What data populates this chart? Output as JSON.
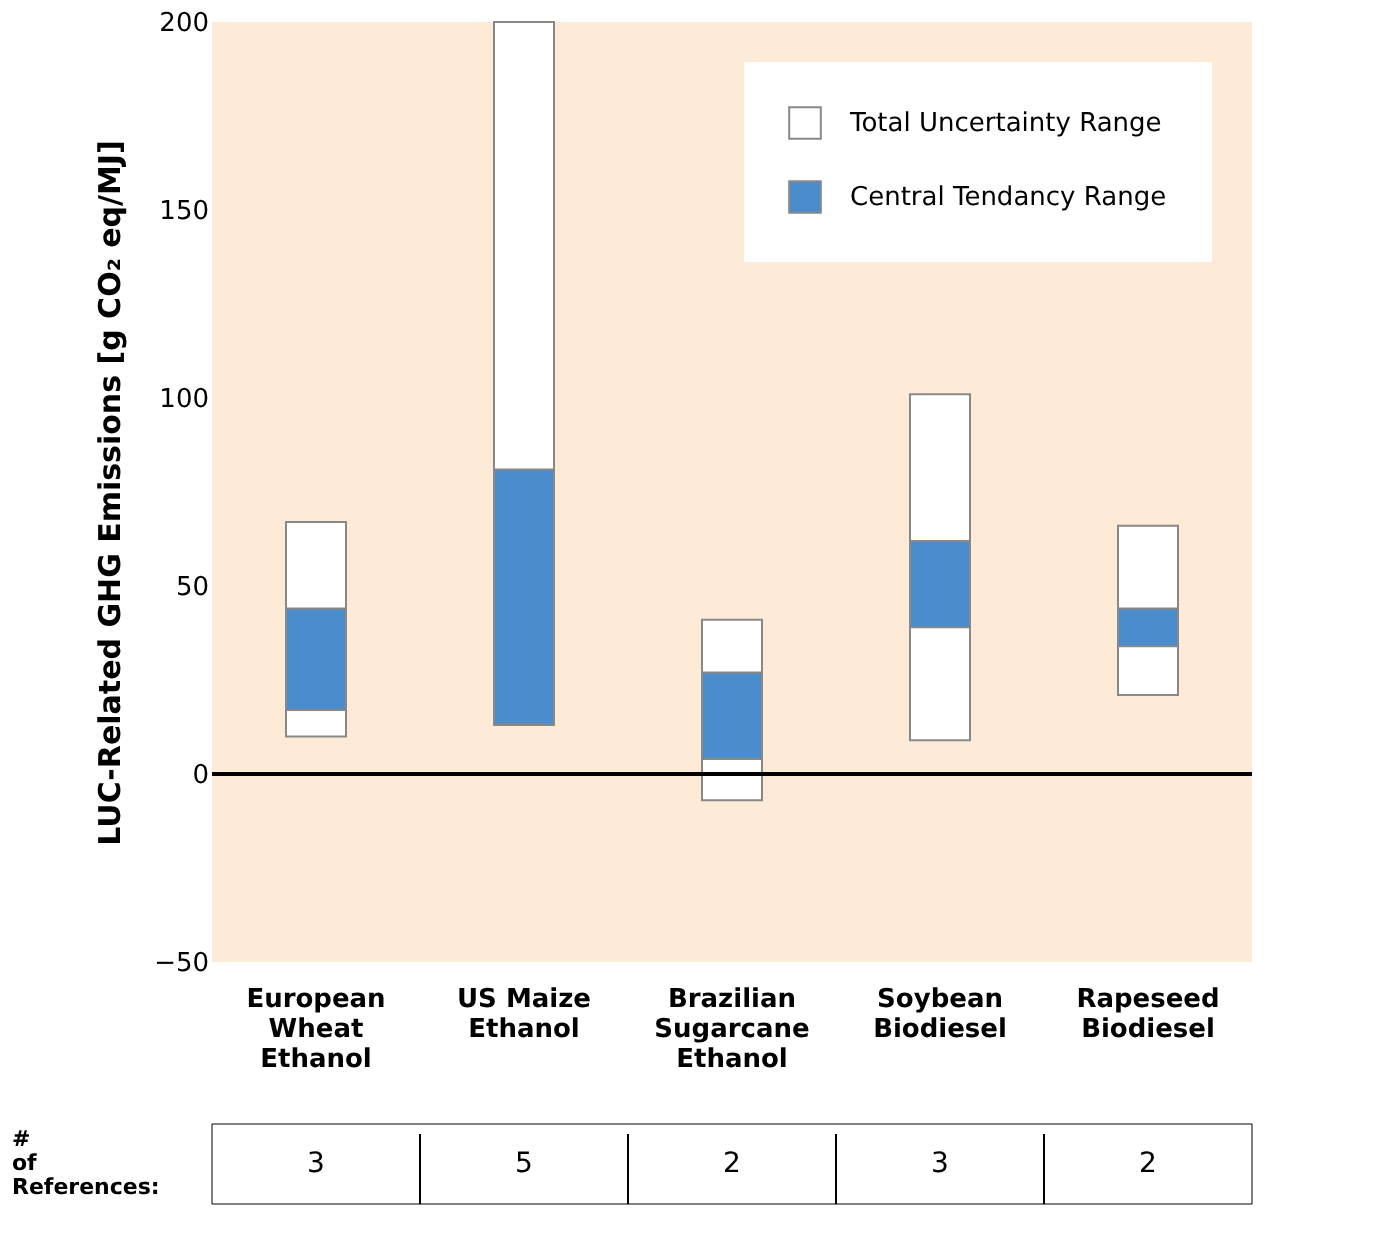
{
  "chart_data": {
    "type": "bar",
    "ylabel": "LUC-Related GHG Emissions [g CO₂ eq/MJ]",
    "categories": [
      "European Wheat Ethanol",
      "US Maize Ethanol",
      "Brazilian Sugarcane Ethanol",
      "Soybean Biodiesel",
      "Rapeseed Biodiesel"
    ],
    "series": [
      {
        "name": "Total Uncertainty Range",
        "color": "#ffffff",
        "base": [
          10,
          13,
          -7,
          9,
          21
        ],
        "values": [
          57,
          187,
          48,
          92,
          45
        ]
      },
      {
        "name": "Central Tendancy Range",
        "color": "#4a8ccc",
        "base": [
          17,
          13,
          4,
          39,
          34
        ],
        "values": [
          27,
          68,
          23,
          23,
          10
        ]
      }
    ],
    "ylim": [
      -50,
      200
    ],
    "yticks": [
      -50,
      0,
      50,
      100,
      150,
      200
    ],
    "grid": false,
    "legend": "top right",
    "ref_lines": [
      {
        "axis": "y",
        "value": 0
      }
    ],
    "annotations": [
      "# of References:",
      "3",
      "5",
      "2",
      "3",
      "2"
    ]
  }
}
